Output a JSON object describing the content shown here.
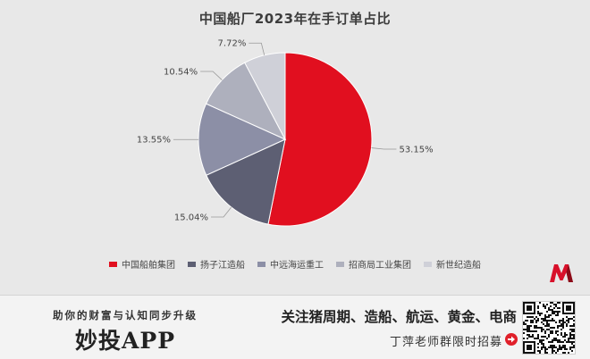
{
  "chart_data": {
    "type": "pie",
    "title": "中国船厂2023年在手订单占比",
    "categories": [
      "中国船舶集团",
      "扬子江造船",
      "中远海运重工",
      "招商局工业集团",
      "新世纪造船"
    ],
    "values": [
      53.15,
      15.04,
      13.55,
      10.54,
      7.72
    ],
    "labels": [
      "53.15%",
      "15.04%",
      "13.55%",
      "10.54%",
      "7.72%"
    ],
    "colors": [
      "#e10f1f",
      "#5d5f73",
      "#8c8fa6",
      "#aeb0bd",
      "#cfd0d8"
    ],
    "legend_position": "bottom"
  },
  "banner": {
    "slogan": "助你的财富与认知同步升级",
    "app_name": "妙投APP",
    "topics": "关注猪周期、造船、航运、黄金、电商",
    "recruit": "丁萍老师群限时招募"
  },
  "colors": {
    "logo_red": "#d8102a",
    "banner_bg": "#f3f3f3",
    "arrow_red": "#e0202a"
  },
  "icons": {
    "logo": "m-logo-icon",
    "arrow": "arrow-right-icon",
    "qr": "qr-code-icon"
  }
}
